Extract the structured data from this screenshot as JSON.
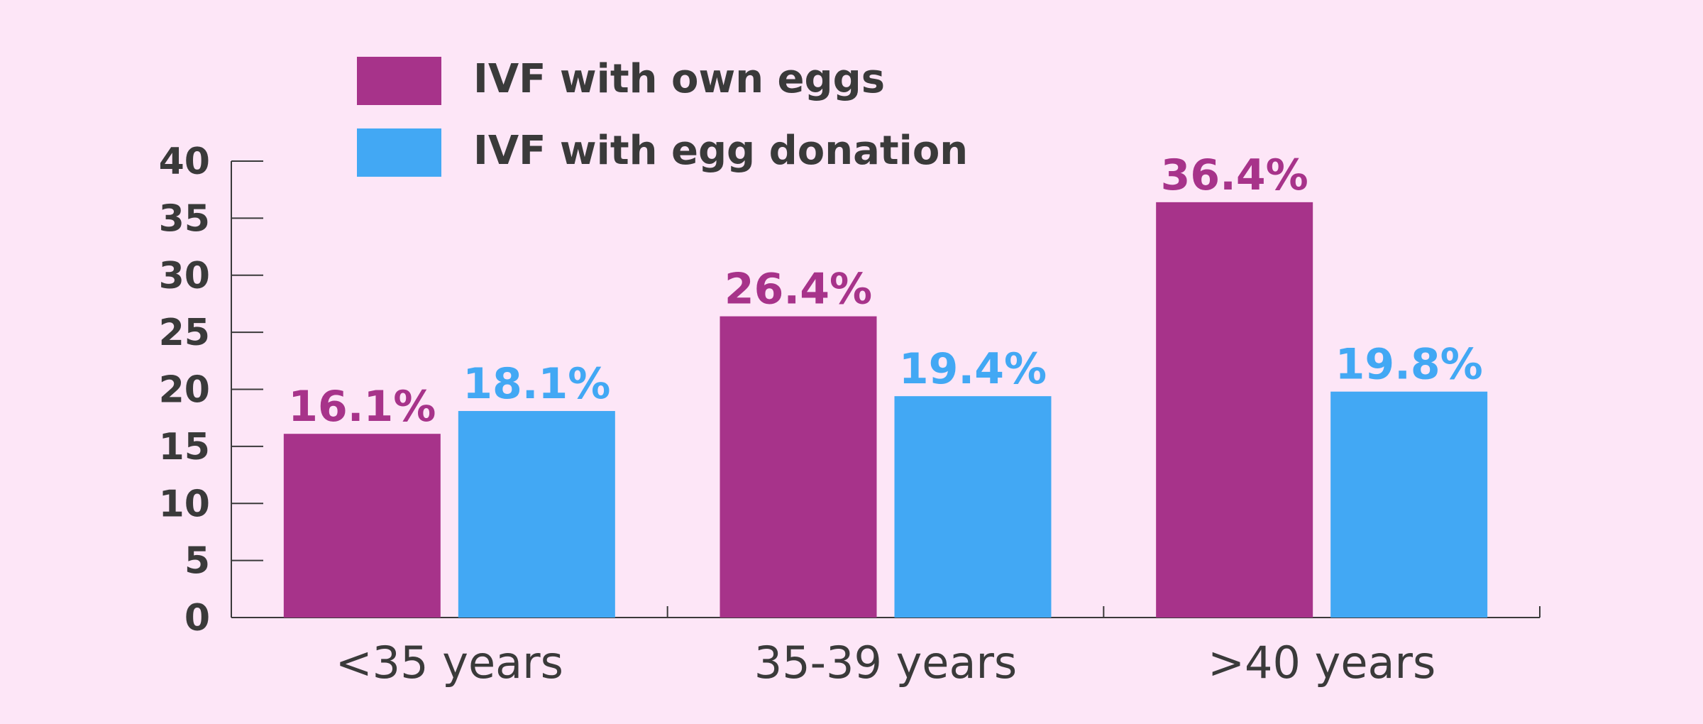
{
  "chart_data": {
    "type": "bar",
    "categories": [
      "<35 years",
      "35-39 years",
      ">40 years"
    ],
    "series": [
      {
        "name": "IVF with own eggs",
        "color": "#a7338a",
        "values": [
          16.1,
          26.4,
          36.4
        ],
        "labels": [
          "16.1%",
          "26.4%",
          "36.4%"
        ]
      },
      {
        "name": "IVF with egg donation",
        "color": "#42a8f4",
        "values": [
          18.1,
          19.4,
          19.8
        ],
        "labels": [
          "18.1%",
          "19.4%",
          "19.8%"
        ]
      }
    ],
    "ylim": [
      0,
      40
    ],
    "yticks": [
      0,
      5,
      10,
      15,
      20,
      25,
      30,
      35,
      40
    ],
    "grid": false,
    "legend_position": "top-left",
    "title": "",
    "xlabel": "",
    "ylabel": ""
  }
}
